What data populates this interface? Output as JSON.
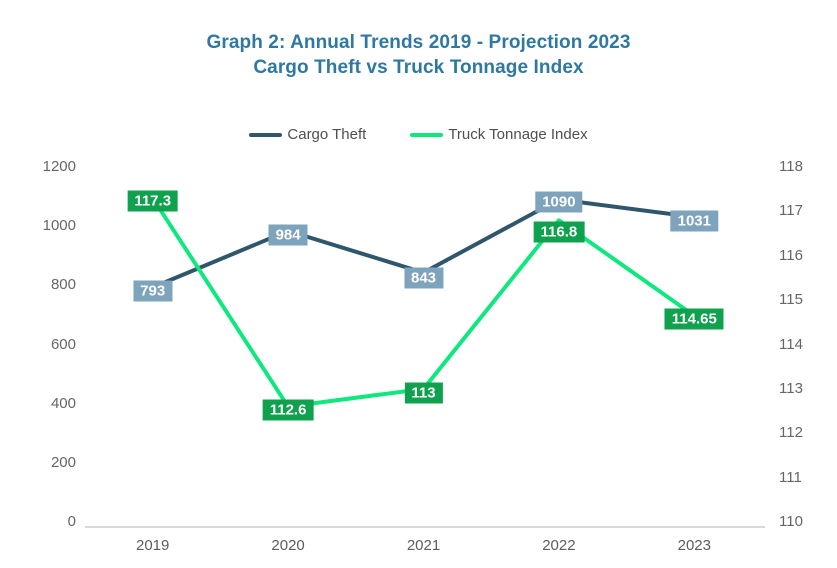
{
  "title": {
    "line1": "Graph 2: Annual Trends 2019 - Projection 2023",
    "line2": "Cargo Theft vs Truck Tonnage Index"
  },
  "legend": [
    {
      "label": "Cargo Theft",
      "color": "#2f566b"
    },
    {
      "label": "Truck Tonnage Index",
      "color": "#0fe87e"
    }
  ],
  "colors": {
    "title": "#2e78a1",
    "cargo_line": "#2f566b",
    "cargo_label_bg": "#7ea3bc",
    "tonnage_line": "#0fe87e",
    "tonnage_label_bg": "#10a14e",
    "axis_line": "#d9d9d9",
    "tick_text": "#666666"
  },
  "chart_data": {
    "type": "line",
    "title": "Graph 2: Annual Trends 2019 - Projection 2023 — Cargo Theft vs Truck Tonnage Index",
    "categories": [
      "2019",
      "2020",
      "2021",
      "2022",
      "2023"
    ],
    "series": [
      {
        "name": "Cargo Theft",
        "axis": "left",
        "values": [
          793,
          984,
          843,
          1090,
          1031
        ],
        "labels": [
          "793",
          "984",
          "843",
          "1090",
          "1031"
        ],
        "label_dy": [
          4,
          4,
          5,
          2,
          4
        ],
        "line_color": "#2f566b",
        "label_bg": "#7ea3bc"
      },
      {
        "name": "Truck Tonnage Index",
        "axis": "right",
        "values": [
          117.3,
          112.6,
          113,
          116.8,
          114.65
        ],
        "labels": [
          "117.3",
          "112.6",
          "113",
          "116.8",
          "114.65"
        ],
        "label_dy": [
          3,
          3,
          4,
          12,
          3
        ],
        "line_color": "#0fe87e",
        "label_bg": "#10a14e"
      }
    ],
    "left_axis": {
      "min": 0,
      "max": 1200,
      "step": 200,
      "ticks": [
        "0",
        "200",
        "400",
        "600",
        "800",
        "1000",
        "1200"
      ]
    },
    "right_axis": {
      "min": 110,
      "max": 118,
      "step": 1,
      "ticks": [
        "110",
        "111",
        "112",
        "113",
        "114",
        "115",
        "116",
        "117",
        "118"
      ]
    },
    "grid": false,
    "legend_position": "top-center"
  }
}
